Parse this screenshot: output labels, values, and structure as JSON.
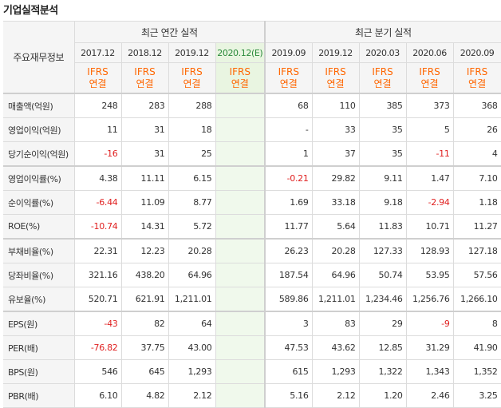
{
  "section_title": "기업실적분석",
  "table": {
    "row_header_label": "주요재무정보",
    "groups": [
      {
        "label": "최근 연간 실적"
      },
      {
        "label": "최근 분기 실적"
      }
    ],
    "periods": [
      {
        "label": "2017.12",
        "estimate": false
      },
      {
        "label": "2018.12",
        "estimate": false
      },
      {
        "label": "2019.12",
        "estimate": false
      },
      {
        "label": "2020.12(E)",
        "estimate": true
      },
      {
        "label": "2019.09",
        "estimate": false
      },
      {
        "label": "2019.12",
        "estimate": false
      },
      {
        "label": "2020.03",
        "estimate": false
      },
      {
        "label": "2020.06",
        "estimate": false
      },
      {
        "label": "2020.09",
        "estimate": false
      }
    ],
    "standard_top": "IFRS",
    "standard_bottom": "연결",
    "rows": [
      {
        "label": "매출액(억원)",
        "values": [
          "248",
          "283",
          "288",
          "",
          "68",
          "110",
          "385",
          "373",
          "368"
        ]
      },
      {
        "label": "영업이익(억원)",
        "values": [
          "11",
          "31",
          "18",
          "",
          "-",
          "33",
          "35",
          "5",
          "26"
        ]
      },
      {
        "label": "당기순이익(억원)",
        "values": [
          "-16",
          "31",
          "25",
          "",
          "1",
          "37",
          "35",
          "-11",
          "4"
        ]
      },
      {
        "label": "영업이익률(%)",
        "values": [
          "4.38",
          "11.11",
          "6.15",
          "",
          "-0.21",
          "29.82",
          "9.11",
          "1.47",
          "7.10"
        ]
      },
      {
        "label": "순이익률(%)",
        "values": [
          "-6.44",
          "11.09",
          "8.77",
          "",
          "1.69",
          "33.18",
          "9.18",
          "-2.94",
          "1.18"
        ]
      },
      {
        "label": "ROE(%)",
        "values": [
          "-10.74",
          "14.31",
          "5.72",
          "",
          "11.77",
          "5.64",
          "11.83",
          "10.71",
          "11.27"
        ]
      },
      {
        "label": "부채비율(%)",
        "values": [
          "22.31",
          "12.23",
          "20.28",
          "",
          "26.23",
          "20.28",
          "127.33",
          "128.93",
          "127.18"
        ]
      },
      {
        "label": "당좌비율(%)",
        "values": [
          "321.16",
          "438.20",
          "64.96",
          "",
          "187.54",
          "64.96",
          "50.74",
          "53.95",
          "57.56"
        ]
      },
      {
        "label": "유보율(%)",
        "values": [
          "520.71",
          "621.91",
          "1,211.01",
          "",
          "589.86",
          "1,211.01",
          "1,234.46",
          "1,256.76",
          "1,266.10"
        ]
      },
      {
        "label": "EPS(원)",
        "values": [
          "-43",
          "82",
          "64",
          "",
          "3",
          "83",
          "29",
          "-9",
          "8"
        ]
      },
      {
        "label": "PER(배)",
        "values": [
          "-76.82",
          "37.75",
          "43.00",
          "",
          "47.53",
          "43.62",
          "12.85",
          "31.29",
          "41.90"
        ]
      },
      {
        "label": "BPS(원)",
        "values": [
          "546",
          "645",
          "1,293",
          "",
          "615",
          "1,293",
          "1,322",
          "1,343",
          "1,352"
        ]
      },
      {
        "label": "PBR(배)",
        "values": [
          "6.10",
          "4.82",
          "2.12",
          "",
          "5.16",
          "2.12",
          "1.20",
          "2.46",
          "3.25"
        ]
      }
    ],
    "separator_before_rows": [
      3,
      6,
      9
    ],
    "negative_color": "#e02020",
    "standard_color": "#ff6600",
    "estimate_bg": "#f0f9ec"
  }
}
